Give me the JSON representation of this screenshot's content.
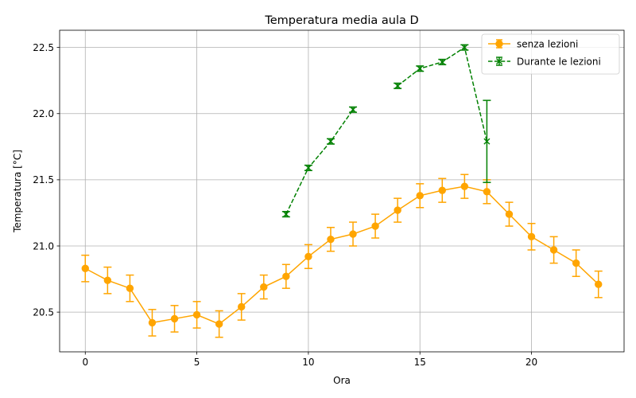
{
  "chart_data": {
    "type": "line",
    "title": "Temperatura media aula D",
    "xlabel": "Ora",
    "ylabel": "Temperatura [°C]",
    "xlim": [
      -1.15,
      24.15
    ],
    "ylim": [
      20.2,
      22.63
    ],
    "xticks": [
      "0",
      "5",
      "10",
      "15",
      "20"
    ],
    "yticks": [
      "20.5",
      "21.0",
      "21.5",
      "22.0",
      "22.5"
    ],
    "grid": true,
    "legend_position": "top-right",
    "series": [
      {
        "name": "senza lezioni",
        "color": "#ffa500",
        "marker": "circle",
        "linestyle": "solid",
        "x": [
          0,
          1,
          2,
          3,
          4,
          5,
          6,
          7,
          8,
          9,
          10,
          11,
          12,
          13,
          14,
          15,
          16,
          17,
          18,
          19,
          20,
          21,
          22,
          23
        ],
        "y": [
          20.83,
          20.74,
          20.68,
          20.42,
          20.45,
          20.48,
          20.41,
          20.54,
          20.69,
          20.77,
          20.92,
          21.05,
          21.09,
          21.15,
          21.27,
          21.38,
          21.42,
          21.45,
          21.41,
          21.24,
          21.07,
          20.97,
          20.87,
          20.71
        ],
        "err": [
          0.1,
          0.1,
          0.1,
          0.1,
          0.1,
          0.1,
          0.1,
          0.1,
          0.09,
          0.09,
          0.09,
          0.09,
          0.09,
          0.09,
          0.09,
          0.09,
          0.09,
          0.09,
          0.09,
          0.09,
          0.1,
          0.1,
          0.1,
          0.1
        ]
      },
      {
        "name": "Durante le lezioni",
        "color": "#008000",
        "marker": "x",
        "linestyle": "dashed",
        "x": [
          9,
          10,
          11,
          12,
          13,
          14,
          15,
          16,
          17,
          18
        ],
        "y": [
          21.24,
          21.59,
          21.79,
          22.03,
          null,
          22.21,
          22.34,
          22.39,
          22.5,
          21.79
        ],
        "err": [
          0.02,
          0.02,
          0.02,
          0.02,
          null,
          0.02,
          0.02,
          0.02,
          0.02,
          0.31
        ]
      }
    ]
  }
}
